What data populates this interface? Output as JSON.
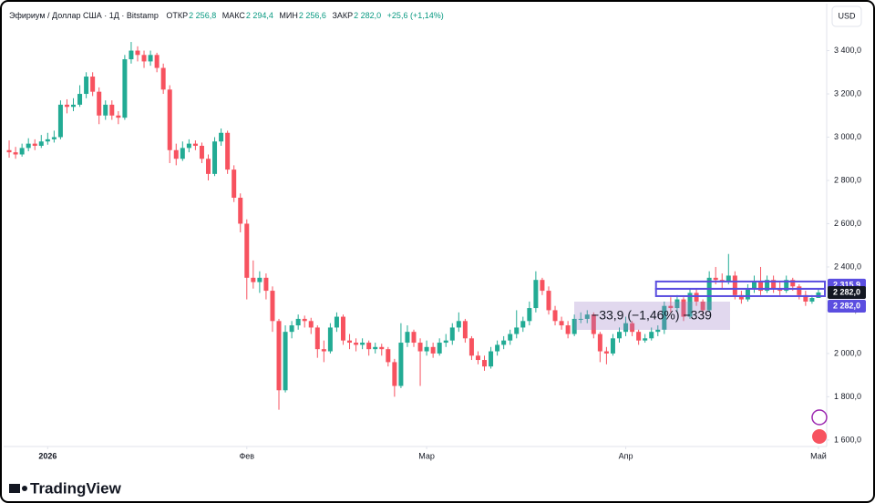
{
  "header": {
    "symbol": "Эфириум / Доллар США · 1Д · Bitstamp",
    "ohlc": [
      {
        "label": "ОТКР",
        "value": "2 256,8"
      },
      {
        "label": "МАКС",
        "value": "2 294,4"
      },
      {
        "label": "МИН",
        "value": "2 256,6"
      },
      {
        "label": "ЗАКР",
        "value": "2 282,0"
      }
    ],
    "change": "+25,6 (+1,14%)",
    "currency": "USD"
  },
  "chart_data": {
    "type": "candlestick",
    "up_color": "#22ab94",
    "down_color": "#f7525f",
    "xlim": [
      -1,
      127
    ],
    "ylim": [
      1570,
      3575
    ],
    "xticks": [
      {
        "value": 6,
        "label": "2026"
      },
      {
        "value": 37,
        "label": "Фев"
      },
      {
        "value": 65,
        "label": "Мар"
      },
      {
        "value": 96,
        "label": "Апр"
      },
      {
        "value": 126,
        "label": "Май"
      }
    ],
    "yticks": [
      {
        "value": 1600,
        "label": "1 600,0"
      },
      {
        "value": 1800,
        "label": "1 800,0"
      },
      {
        "value": 2000,
        "label": "2 000,0"
      },
      {
        "value": 2200,
        "label": "2 200,0"
      },
      {
        "value": 2400,
        "label": "2 400,0"
      },
      {
        "value": 2600,
        "label": "2 600,0"
      },
      {
        "value": 2800,
        "label": "2 800,0"
      },
      {
        "value": 3000,
        "label": "3 000,0"
      },
      {
        "value": 3200,
        "label": "3 200,0"
      },
      {
        "value": 3400,
        "label": "3 400,0"
      }
    ],
    "grid": false,
    "candles": [
      [
        2940,
        2985,
        2905,
        2930
      ],
      [
        2930,
        2955,
        2900,
        2920
      ],
      [
        2920,
        2970,
        2910,
        2950
      ],
      [
        2950,
        2995,
        2935,
        2970
      ],
      [
        2970,
        2990,
        2940,
        2960
      ],
      [
        2960,
        3010,
        2950,
        2980
      ],
      [
        2980,
        3020,
        2965,
        2990
      ],
      [
        2990,
        3030,
        2975,
        3000
      ],
      [
        3000,
        3170,
        2990,
        3150
      ],
      [
        3150,
        3175,
        3110,
        3140
      ],
      [
        3140,
        3180,
        3120,
        3150
      ],
      [
        3150,
        3240,
        3140,
        3200
      ],
      [
        3200,
        3300,
        3180,
        3280
      ],
      [
        3280,
        3300,
        3190,
        3210
      ],
      [
        3210,
        3230,
        3060,
        3100
      ],
      [
        3100,
        3170,
        3080,
        3150
      ],
      [
        3150,
        3170,
        3080,
        3100
      ],
      [
        3100,
        3120,
        3060,
        3090
      ],
      [
        3090,
        3380,
        3080,
        3360
      ],
      [
        3360,
        3440,
        3340,
        3400
      ],
      [
        3400,
        3420,
        3350,
        3380
      ],
      [
        3380,
        3400,
        3320,
        3350
      ],
      [
        3350,
        3400,
        3330,
        3380
      ],
      [
        3380,
        3390,
        3300,
        3320
      ],
      [
        3320,
        3340,
        3200,
        3220
      ],
      [
        3220,
        3240,
        2880,
        2940
      ],
      [
        2940,
        2970,
        2870,
        2900
      ],
      [
        2900,
        2980,
        2890,
        2950
      ],
      [
        2950,
        2990,
        2930,
        2970
      ],
      [
        2970,
        2985,
        2940,
        2960
      ],
      [
        2960,
        2975,
        2880,
        2900
      ],
      [
        2900,
        2920,
        2800,
        2830
      ],
      [
        2830,
        3000,
        2820,
        2980
      ],
      [
        2980,
        3040,
        2960,
        3020
      ],
      [
        3020,
        3030,
        2830,
        2850
      ],
      [
        2850,
        2870,
        2700,
        2720
      ],
      [
        2720,
        2740,
        2560,
        2600
      ],
      [
        2600,
        2620,
        2250,
        2350
      ],
      [
        2350,
        2430,
        2300,
        2330
      ],
      [
        2330,
        2380,
        2280,
        2350
      ],
      [
        2350,
        2370,
        2250,
        2290
      ],
      [
        2290,
        2310,
        2100,
        2150
      ],
      [
        2150,
        2160,
        1740,
        1830
      ],
      [
        1830,
        2130,
        1820,
        2100
      ],
      [
        2100,
        2150,
        2070,
        2130
      ],
      [
        2130,
        2180,
        2110,
        2160
      ],
      [
        2160,
        2175,
        2120,
        2150
      ],
      [
        2150,
        2165,
        2090,
        2120
      ],
      [
        2120,
        2130,
        1980,
        2020
      ],
      [
        2020,
        2060,
        1960,
        2010
      ],
      [
        2010,
        2140,
        2000,
        2120
      ],
      [
        2120,
        2190,
        2100,
        2170
      ],
      [
        2170,
        2180,
        2040,
        2060
      ],
      [
        2060,
        2090,
        2020,
        2050
      ],
      [
        2050,
        2070,
        2010,
        2040
      ],
      [
        2040,
        2070,
        2020,
        2050
      ],
      [
        2050,
        2060,
        1990,
        2020
      ],
      [
        2020,
        2050,
        2000,
        2030
      ],
      [
        2030,
        2045,
        1990,
        2020
      ],
      [
        2020,
        2030,
        1940,
        1960
      ],
      [
        1960,
        1975,
        1800,
        1850
      ],
      [
        1850,
        2140,
        1840,
        2050
      ],
      [
        2050,
        2130,
        2030,
        2100
      ],
      [
        2100,
        2110,
        2030,
        2050
      ],
      [
        2050,
        2070,
        1850,
        2010
      ],
      [
        2010,
        2060,
        1990,
        2030
      ],
      [
        2030,
        2050,
        1980,
        2000
      ],
      [
        2000,
        2070,
        1990,
        2050
      ],
      [
        2050,
        2090,
        2030,
        2060
      ],
      [
        2060,
        2140,
        2040,
        2120
      ],
      [
        2120,
        2190,
        2100,
        2150
      ],
      [
        2150,
        2160,
        2050,
        2070
      ],
      [
        2070,
        2080,
        1970,
        1990
      ],
      [
        1990,
        2010,
        1950,
        1970
      ],
      [
        1970,
        1990,
        1920,
        1940
      ],
      [
        1940,
        2030,
        1930,
        2010
      ],
      [
        2010,
        2060,
        1990,
        2040
      ],
      [
        2040,
        2080,
        2020,
        2060
      ],
      [
        2060,
        2110,
        2040,
        2090
      ],
      [
        2090,
        2200,
        2070,
        2120
      ],
      [
        2120,
        2170,
        2100,
        2150
      ],
      [
        2150,
        2240,
        2130,
        2210
      ],
      [
        2210,
        2380,
        2190,
        2340
      ],
      [
        2340,
        2350,
        2270,
        2290
      ],
      [
        2290,
        2310,
        2180,
        2200
      ],
      [
        2200,
        2220,
        2130,
        2150
      ],
      [
        2150,
        2170,
        2110,
        2130
      ],
      [
        2130,
        2150,
        2070,
        2090
      ],
      [
        2090,
        2180,
        2080,
        2160
      ],
      [
        2160,
        2190,
        2140,
        2160
      ],
      [
        2160,
        2200,
        2140,
        2180
      ],
      [
        2180,
        2190,
        2070,
        2090
      ],
      [
        2090,
        2100,
        1960,
        2010
      ],
      [
        2010,
        2030,
        1950,
        2000
      ],
      [
        2000,
        2090,
        1990,
        2070
      ],
      [
        2070,
        2120,
        2050,
        2100
      ],
      [
        2100,
        2170,
        2080,
        2140
      ],
      [
        2140,
        2150,
        2080,
        2100
      ],
      [
        2100,
        2110,
        2040,
        2060
      ],
      [
        2060,
        2090,
        2050,
        2070
      ],
      [
        2070,
        2120,
        2060,
        2100
      ],
      [
        2100,
        2130,
        2080,
        2110
      ],
      [
        2110,
        2240,
        2090,
        2220
      ],
      [
        2220,
        2260,
        2190,
        2210
      ],
      [
        2210,
        2270,
        2190,
        2250
      ],
      [
        2250,
        2260,
        2150,
        2170
      ],
      [
        2170,
        2300,
        2160,
        2280
      ],
      [
        2280,
        2300,
        2220,
        2240
      ],
      [
        2240,
        2250,
        2180,
        2200
      ],
      [
        2200,
        2380,
        2190,
        2350
      ],
      [
        2350,
        2400,
        2320,
        2340
      ],
      [
        2340,
        2370,
        2300,
        2330
      ],
      [
        2330,
        2460,
        2320,
        2360
      ],
      [
        2360,
        2380,
        2250,
        2270
      ],
      [
        2270,
        2290,
        2230,
        2250
      ],
      [
        2250,
        2320,
        2240,
        2300
      ],
      [
        2300,
        2360,
        2280,
        2330
      ],
      [
        2330,
        2400,
        2270,
        2290
      ],
      [
        2290,
        2360,
        2280,
        2340
      ],
      [
        2340,
        2360,
        2280,
        2300
      ],
      [
        2300,
        2330,
        2270,
        2290
      ],
      [
        2290,
        2360,
        2280,
        2340
      ],
      [
        2340,
        2350,
        2290,
        2310
      ],
      [
        2310,
        2320,
        2250,
        2270
      ],
      [
        2270,
        2290,
        2220,
        2240
      ],
      [
        2240,
        2270,
        2230,
        2256.8
      ],
      [
        2256.8,
        2294.4,
        2256.6,
        2282
      ]
    ],
    "price_labels": [
      {
        "value": 2315.9,
        "label": "2 315,9",
        "color": "#5b4ee0"
      },
      {
        "value": 2282,
        "label": "2 282,0",
        "color": "#131722"
      },
      {
        "value": 2282,
        "label": "2 282,0",
        "color": "#5b4ee0"
      }
    ],
    "measure": {
      "text": "−33,9 (−1,46%) −339"
    }
  },
  "footer": {
    "logo": "TradingView"
  }
}
